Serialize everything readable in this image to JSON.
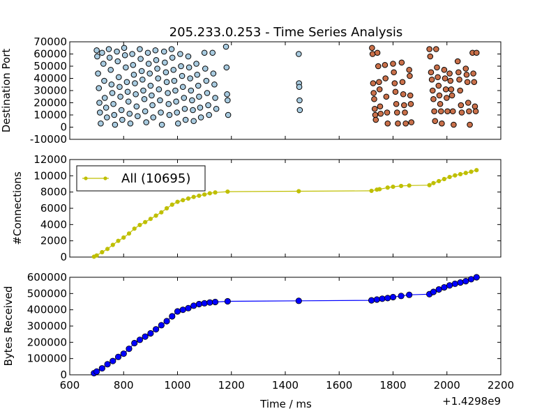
{
  "chart_data": [
    {
      "type": "scatter",
      "title": "205.233.0.253 - Time Series Analysis",
      "xlabel": "",
      "ylabel": "Destination Port",
      "xlim": [
        600,
        2200
      ],
      "ylim": [
        -10000,
        70000
      ],
      "yticks": [
        -10000,
        0,
        10000,
        20000,
        30000,
        40000,
        50000,
        60000,
        70000
      ],
      "grid": false,
      "series": [
        {
          "color": "#a8cbe0",
          "points": [
            [
              700,
              63000
            ],
            [
              702,
              58000
            ],
            [
              705,
              44000
            ],
            [
              708,
              32000
            ],
            [
              710,
              20000
            ],
            [
              712,
              12000
            ],
            [
              715,
              3000
            ],
            [
              720,
              61000
            ],
            [
              725,
              52000
            ],
            [
              728,
              38000
            ],
            [
              730,
              24000
            ],
            [
              735,
              16000
            ],
            [
              738,
              8000
            ],
            [
              745,
              64000
            ],
            [
              748,
              57000
            ],
            [
              752,
              47000
            ],
            [
              755,
              35000
            ],
            [
              758,
              28000
            ],
            [
              762,
              19000
            ],
            [
              765,
              10000
            ],
            [
              768,
              2000
            ],
            [
              775,
              62000
            ],
            [
              778,
              54000
            ],
            [
              782,
              41000
            ],
            [
              785,
              33000
            ],
            [
              788,
              25000
            ],
            [
              792,
              14000
            ],
            [
              795,
              6000
            ],
            [
              802,
              65000
            ],
            [
              805,
              59000
            ],
            [
              808,
              49000
            ],
            [
              812,
              37000
            ],
            [
              815,
              29000
            ],
            [
              818,
              21000
            ],
            [
              822,
              11000
            ],
            [
              825,
              3000
            ],
            [
              832,
              60000
            ],
            [
              835,
              51000
            ],
            [
              838,
              43000
            ],
            [
              842,
              36000
            ],
            [
              845,
              27000
            ],
            [
              848,
              17000
            ],
            [
              852,
              9000
            ],
            [
              860,
              64000
            ],
            [
              863,
              56000
            ],
            [
              867,
              46000
            ],
            [
              870,
              39000
            ],
            [
              873,
              30000
            ],
            [
              877,
              23000
            ],
            [
              880,
              13000
            ],
            [
              884,
              4000
            ],
            [
              890,
              61000
            ],
            [
              893,
              52000
            ],
            [
              897,
              44000
            ],
            [
              900,
              34000
            ],
            [
              904,
              26000
            ],
            [
              907,
              18000
            ],
            [
              910,
              8000
            ],
            [
              918,
              63000
            ],
            [
              921,
              55000
            ],
            [
              925,
              48000
            ],
            [
              928,
              40000
            ],
            [
              931,
              31000
            ],
            [
              935,
              22000
            ],
            [
              938,
              12000
            ],
            [
              942,
              2000
            ],
            [
              950,
              62000
            ],
            [
              953,
              53000
            ],
            [
              957,
              45000
            ],
            [
              960,
              37000
            ],
            [
              964,
              28000
            ],
            [
              967,
              19000
            ],
            [
              970,
              10000
            ],
            [
              978,
              64000
            ],
            [
              981,
              57000
            ],
            [
              985,
              47000
            ],
            [
              988,
              38000
            ],
            [
              992,
              30000
            ],
            [
              995,
              21000
            ],
            [
              998,
              12000
            ],
            [
              1002,
              3000
            ],
            [
              1010,
              60000
            ],
            [
              1013,
              50000
            ],
            [
              1017,
              42000
            ],
            [
              1020,
              33000
            ],
            [
              1024,
              24000
            ],
            [
              1027,
              15000
            ],
            [
              1030,
              6000
            ],
            [
              1040,
              58000
            ],
            [
              1043,
              49000
            ],
            [
              1047,
              40000
            ],
            [
              1050,
              30000
            ],
            [
              1054,
              22000
            ],
            [
              1057,
              14000
            ],
            [
              1060,
              5000
            ],
            [
              1070,
              52000
            ],
            [
              1073,
              43000
            ],
            [
              1077,
              34000
            ],
            [
              1080,
              25000
            ],
            [
              1084,
              16000
            ],
            [
              1087,
              8000
            ],
            [
              1100,
              61000
            ],
            [
              1103,
              48000
            ],
            [
              1107,
              38000
            ],
            [
              1110,
              28000
            ],
            [
              1114,
              18000
            ],
            [
              1117,
              10000
            ],
            [
              1130,
              61000
            ],
            [
              1133,
              44000
            ],
            [
              1137,
              35000
            ],
            [
              1140,
              24000
            ],
            [
              1144,
              15000
            ],
            [
              1180,
              66000
            ],
            [
              1182,
              49000
            ],
            [
              1184,
              27000
            ],
            [
              1186,
              22000
            ],
            [
              1188,
              10000
            ],
            [
              1450,
              60000
            ],
            [
              1451,
              36000
            ],
            [
              1452,
              33000
            ],
            [
              1453,
              22000
            ],
            [
              1454,
              14000
            ]
          ]
        },
        {
          "color": "#c9704a",
          "points": [
            [
              1722,
              65000
            ],
            [
              1724,
              60000
            ],
            [
              1726,
              36000
            ],
            [
              1728,
              28000
            ],
            [
              1730,
              23000
            ],
            [
              1732,
              15000
            ],
            [
              1734,
              10000
            ],
            [
              1736,
              6000
            ],
            [
              1742,
              61000
            ],
            [
              1745,
              50000
            ],
            [
              1748,
              37000
            ],
            [
              1750,
              31000
            ],
            [
              1752,
              17000
            ],
            [
              1754,
              11000
            ],
            [
              1770,
              51000
            ],
            [
              1772,
              40000
            ],
            [
              1775,
              25000
            ],
            [
              1778,
              12000
            ],
            [
              1780,
              3000
            ],
            [
              1800,
              52000
            ],
            [
              1803,
              45000
            ],
            [
              1806,
              36000
            ],
            [
              1809,
              29000
            ],
            [
              1812,
              19000
            ],
            [
              1815,
              12000
            ],
            [
              1818,
              3000
            ],
            [
              1832,
              53000
            ],
            [
              1835,
              37000
            ],
            [
              1838,
              27000
            ],
            [
              1841,
              18000
            ],
            [
              1844,
              12000
            ],
            [
              1847,
              3000
            ],
            [
              1860,
              47000
            ],
            [
              1862,
              42000
            ],
            [
              1864,
              26000
            ],
            [
              1866,
              19000
            ],
            [
              1868,
              4000
            ],
            [
              1935,
              64000
            ],
            [
              1938,
              58000
            ],
            [
              1941,
              45000
            ],
            [
              1944,
              39000
            ],
            [
              1947,
              30000
            ],
            [
              1950,
              23000
            ],
            [
              1953,
              13000
            ],
            [
              1956,
              5000
            ],
            [
              1960,
              64000
            ],
            [
              1963,
              49000
            ],
            [
              1966,
              41000
            ],
            [
              1969,
              34000
            ],
            [
              1972,
              26000
            ],
            [
              1975,
              19000
            ],
            [
              1978,
              13000
            ],
            [
              1981,
              3000
            ],
            [
              1990,
              47000
            ],
            [
              1993,
              40000
            ],
            [
              1996,
              31000
            ],
            [
              1999,
              24000
            ],
            [
              2002,
              13000
            ],
            [
              2010,
              44000
            ],
            [
              2013,
              38000
            ],
            [
              2016,
              31000
            ],
            [
              2019,
              26000
            ],
            [
              2022,
              13000
            ],
            [
              2025,
              2000
            ],
            [
              2040,
              54000
            ],
            [
              2043,
              45000
            ],
            [
              2046,
              39000
            ],
            [
              2049,
              30000
            ],
            [
              2052,
              18000
            ],
            [
              2055,
              12000
            ],
            [
              2070,
              48000
            ],
            [
              2073,
              43000
            ],
            [
              2076,
              37000
            ],
            [
              2079,
              20000
            ],
            [
              2082,
              13000
            ],
            [
              2085,
              2000
            ],
            [
              2095,
              61000
            ],
            [
              2098,
              44000
            ],
            [
              2101,
              37000
            ],
            [
              2104,
              17000
            ],
            [
              2107,
              13000
            ],
            [
              2110,
              61000
            ]
          ]
        }
      ]
    },
    {
      "type": "line",
      "title": "",
      "xlabel": "",
      "ylabel": "#Connections",
      "xlim": [
        600,
        2200
      ],
      "ylim": [
        0,
        12000
      ],
      "yticks": [
        0,
        2000,
        4000,
        6000,
        8000,
        10000,
        12000
      ],
      "grid": false,
      "legend_position": "top-left",
      "series": [
        {
          "name": "All (10695)",
          "color": "#bfbf00",
          "x": [
            690,
            700,
            720,
            740,
            760,
            780,
            800,
            820,
            840,
            860,
            880,
            900,
            920,
            940,
            960,
            980,
            1000,
            1020,
            1040,
            1060,
            1080,
            1100,
            1120,
            1140,
            1186,
            1450,
            1720,
            1740,
            1750,
            1780,
            1800,
            1830,
            1860,
            1935,
            1950,
            1970,
            1990,
            2010,
            2030,
            2050,
            2070,
            2090,
            2110
          ],
          "y": [
            50,
            200,
            600,
            1000,
            1500,
            2000,
            2400,
            2900,
            3500,
            3950,
            4300,
            4700,
            5100,
            5500,
            6000,
            6450,
            6800,
            7000,
            7200,
            7400,
            7550,
            7700,
            7850,
            7950,
            8050,
            8100,
            8150,
            8300,
            8350,
            8550,
            8650,
            8750,
            8800,
            8850,
            9100,
            9350,
            9600,
            9850,
            10050,
            10200,
            10350,
            10500,
            10695
          ]
        }
      ]
    },
    {
      "type": "line",
      "title": "",
      "xlabel": "Time / ms",
      "ylabel": "Bytes Received",
      "xlim": [
        600,
        2200
      ],
      "ylim": [
        0,
        600000
      ],
      "yticks": [
        0,
        100000,
        200000,
        300000,
        400000,
        500000,
        600000
      ],
      "xticks": [
        600,
        800,
        1000,
        1200,
        1400,
        1600,
        1800,
        2000,
        2200
      ],
      "offset_text": "+1.4298e9",
      "grid": false,
      "series": [
        {
          "color": "#0000ff",
          "x": [
            690,
            700,
            720,
            740,
            760,
            780,
            800,
            820,
            840,
            860,
            880,
            900,
            920,
            940,
            960,
            980,
            1000,
            1020,
            1040,
            1060,
            1080,
            1100,
            1120,
            1140,
            1186,
            1450,
            1720,
            1740,
            1760,
            1780,
            1800,
            1830,
            1860,
            1935,
            1950,
            1970,
            1990,
            2010,
            2030,
            2050,
            2070,
            2090,
            2110
          ],
          "y": [
            10000,
            20000,
            40000,
            65000,
            85000,
            110000,
            130000,
            160000,
            195000,
            215000,
            235000,
            255000,
            280000,
            305000,
            330000,
            360000,
            390000,
            400000,
            410000,
            425000,
            435000,
            440000,
            445000,
            448000,
            452000,
            455000,
            458000,
            463000,
            468000,
            472000,
            478000,
            485000,
            492000,
            496000,
            510000,
            525000,
            538000,
            550000,
            560000,
            568000,
            576000,
            588000,
            600000
          ]
        }
      ]
    }
  ]
}
